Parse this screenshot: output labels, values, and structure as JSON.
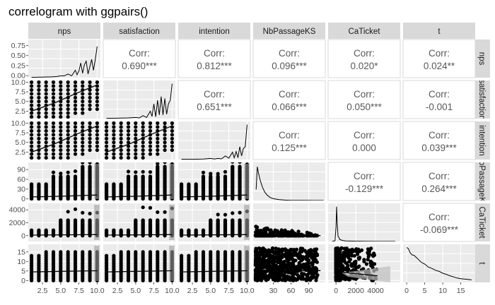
{
  "chart_data": {
    "type": "scatter",
    "title": "correlogram with ggpairs()",
    "variables": [
      "nps",
      "satisfaction",
      "intention",
      "NbPassageKS",
      "CaTicket",
      "t"
    ],
    "row_strip_labels": [
      "nps",
      "satisfaction",
      "intention",
      "NbPassageKS",
      "CaTicket",
      "t"
    ],
    "corr_label": "Corr:",
    "correlations": [
      {
        "row": 0,
        "col": 1,
        "value": "0.690***"
      },
      {
        "row": 0,
        "col": 2,
        "value": "0.812***"
      },
      {
        "row": 0,
        "col": 3,
        "value": "0.096***"
      },
      {
        "row": 0,
        "col": 4,
        "value": "0.020*"
      },
      {
        "row": 0,
        "col": 5,
        "value": "0.024**"
      },
      {
        "row": 1,
        "col": 2,
        "value": "0.651***"
      },
      {
        "row": 1,
        "col": 3,
        "value": "0.066***"
      },
      {
        "row": 1,
        "col": 4,
        "value": "0.050***"
      },
      {
        "row": 1,
        "col": 5,
        "value": "-0.001"
      },
      {
        "row": 2,
        "col": 3,
        "value": "0.125***"
      },
      {
        "row": 2,
        "col": 4,
        "value": "0.000"
      },
      {
        "row": 2,
        "col": 5,
        "value": "0.039***"
      },
      {
        "row": 3,
        "col": 4,
        "value": "-0.129***"
      },
      {
        "row": 3,
        "col": 5,
        "value": "0.264***"
      },
      {
        "row": 4,
        "col": 5,
        "value": "-0.069***"
      }
    ],
    "x_axes": [
      {
        "ticks": [
          2.5,
          5.0,
          7.5,
          10.0
        ],
        "labels": [
          "2.5",
          "5.0",
          "7.5",
          "10.0"
        ]
      },
      {
        "ticks": [
          2.5,
          5.0,
          7.5,
          10.0
        ],
        "labels": [
          "2.5",
          "5.0",
          "7.5",
          "10.0"
        ]
      },
      {
        "ticks": [
          2.5,
          5.0,
          7.5,
          10.0
        ],
        "labels": [
          "2.5",
          "5.0",
          "7.5",
          "10.0"
        ]
      },
      {
        "ticks": [
          30,
          60,
          90
        ],
        "labels": [
          "30",
          "60",
          "90"
        ]
      },
      {
        "ticks": [
          0,
          2000,
          4000
        ],
        "labels": [
          "0",
          "2000",
          "4000"
        ]
      },
      {
        "ticks": [
          0,
          5,
          10,
          15
        ],
        "labels": [
          "0",
          "5",
          "10",
          "15"
        ]
      }
    ],
    "y_axes": [
      {
        "ticks": [
          0.0,
          0.25,
          0.5,
          0.75
        ],
        "labels": [
          "0.00",
          "0.25",
          "0.50",
          "0.75"
        ]
      },
      {
        "ticks": [
          2.5,
          5.0,
          7.5,
          10.0
        ],
        "labels": [
          "2.5",
          "5.0",
          "7.5",
          "10.0"
        ]
      },
      {
        "ticks": [
          2.5,
          5.0,
          7.5,
          10.0
        ],
        "labels": [
          "2.5",
          "5.0",
          "7.5",
          "10.0"
        ]
      },
      {
        "ticks": [
          0,
          30,
          60,
          90
        ],
        "labels": [
          "0",
          "30",
          "60",
          "90"
        ]
      },
      {
        "ticks": [
          0,
          2000,
          4000
        ],
        "labels": [
          "0",
          "2000",
          "4000"
        ]
      },
      {
        "ticks": [
          0,
          5,
          10,
          15
        ],
        "labels": [
          "0",
          "5",
          "10",
          "15"
        ]
      }
    ],
    "x_ranges": [
      [
        0.55,
        10.45
      ],
      [
        0.55,
        10.45
      ],
      [
        0.55,
        10.45
      ],
      [
        -4,
        118
      ],
      [
        -800,
        6500
      ],
      [
        -1,
        19
      ]
    ],
    "y_ranges_row": [
      [
        -0.05,
        0.9
      ],
      [
        0.55,
        10.45
      ],
      [
        0.55,
        10.45
      ],
      [
        -5,
        112
      ],
      [
        -900,
        5000
      ],
      [
        -1,
        19
      ]
    ],
    "panel_type": "ggpairs: lower = scatter with loess smooth, diagonal = density, upper = correlation",
    "density_nps": {
      "x": [
        1,
        1.5,
        2,
        2.5,
        3,
        3.5,
        4,
        4.5,
        5,
        5.5,
        6,
        6.5,
        7,
        7.25,
        7.5,
        7.75,
        8,
        8.25,
        8.5,
        8.75,
        9,
        9.25,
        9.5,
        9.75,
        10
      ],
      "y": [
        0.01,
        0.01,
        0.015,
        0.015,
        0.02,
        0.02,
        0.025,
        0.03,
        0.05,
        0.05,
        0.1,
        0.05,
        0.2,
        0.08,
        0.18,
        0.4,
        0.12,
        0.35,
        0.45,
        0.1,
        0.3,
        0.5,
        0.2,
        0.5,
        0.85
      ]
    },
    "density_satisfaction": {
      "x": [
        1,
        2,
        3,
        4,
        5,
        5.5,
        6,
        6.5,
        7,
        7.25,
        7.5,
        7.75,
        8,
        8.25,
        8.5,
        8.75,
        9,
        9.25,
        9.5,
        9.75,
        10
      ],
      "y": [
        0.01,
        0.01,
        0.015,
        0.02,
        0.03,
        0.02,
        0.08,
        0.03,
        0.2,
        0.06,
        0.4,
        0.05,
        0.5,
        0.1,
        0.6,
        0.1,
        0.55,
        0.12,
        0.4,
        0.5,
        0.95
      ]
    },
    "density_intention": {
      "x": [
        1,
        2,
        3,
        4,
        5,
        5.5,
        6,
        6.5,
        7,
        7.5,
        8,
        8.25,
        8.5,
        8.75,
        9,
        9.25,
        9.5,
        9.75,
        10
      ],
      "y": [
        0.01,
        0.01,
        0.01,
        0.015,
        0.03,
        0.015,
        0.03,
        0.02,
        0.1,
        0.04,
        0.2,
        0.05,
        0.22,
        0.05,
        0.35,
        0.1,
        0.3,
        0.35,
        0.95
      ]
    },
    "density_NbPassageKS": {
      "x": [
        1,
        3,
        5,
        8,
        12,
        16,
        20,
        25,
        30,
        40,
        50,
        60,
        80,
        100,
        115
      ],
      "y": [
        0.3,
        0.92,
        0.75,
        0.55,
        0.35,
        0.22,
        0.14,
        0.08,
        0.05,
        0.025,
        0.012,
        0.006,
        0.003,
        0.002,
        0.001
      ]
    },
    "density_CaTicket": {
      "x": [
        -400,
        -100,
        0,
        60,
        120,
        200,
        400,
        700,
        1000,
        2000,
        3000,
        4500,
        6000
      ],
      "y": [
        0,
        0.02,
        0.4,
        0.95,
        0.5,
        0.15,
        0.05,
        0.025,
        0.015,
        0.008,
        0.004,
        0.002,
        0.001
      ]
    },
    "density_t": {
      "x": [
        0,
        0.5,
        1,
        1.5,
        2,
        3,
        4,
        5,
        6,
        7,
        8,
        9,
        10,
        11,
        12,
        13,
        14,
        15,
        16,
        17,
        18
      ],
      "y": [
        0.95,
        0.92,
        0.8,
        0.75,
        0.74,
        0.65,
        0.55,
        0.5,
        0.42,
        0.38,
        0.33,
        0.3,
        0.25,
        0.22,
        0.18,
        0.15,
        0.12,
        0.1,
        0.09,
        0.08,
        0.07
      ]
    }
  }
}
